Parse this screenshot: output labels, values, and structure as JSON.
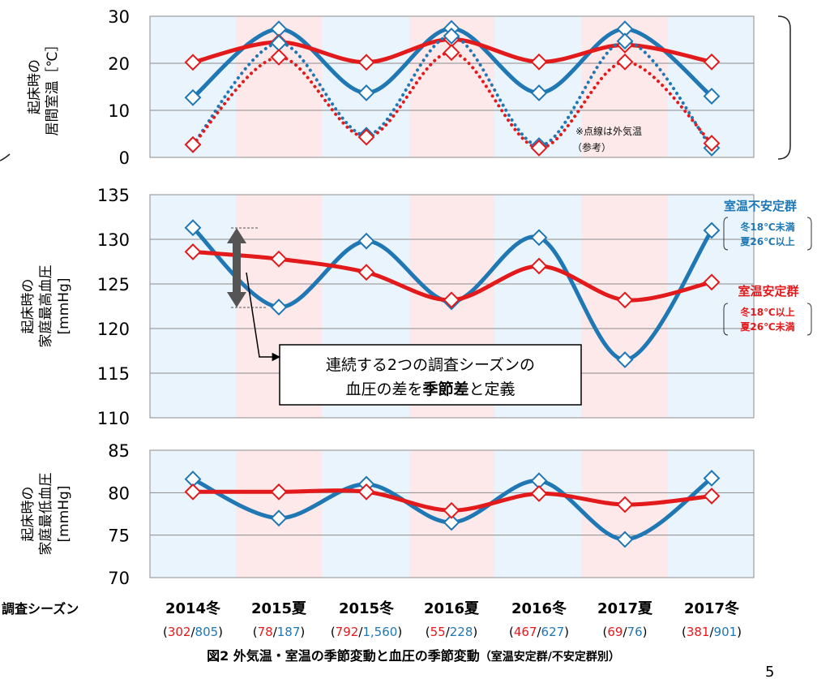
{
  "figure": {
    "caption": "図2 外気温・室温の季節変動と血圧の季節変動",
    "caption_note": "（室温安定群/不安定群別）",
    "page_number": "5",
    "x_row_label": "調査シーズン"
  },
  "colors": {
    "stable": "#e31a1c",
    "unstable": "#1f77b4",
    "winter_bg": "#eaf4fc",
    "summer_bg": "#fde9ea"
  },
  "seasons": [
    {
      "label": "2014冬",
      "type": "winter",
      "n_stable": "302",
      "n_unstable": "805"
    },
    {
      "label": "2015夏",
      "type": "summer",
      "n_stable": "78",
      "n_unstable": "187"
    },
    {
      "label": "2015冬",
      "type": "winter",
      "n_stable": "792",
      "n_unstable": "1,560"
    },
    {
      "label": "2016夏",
      "type": "summer",
      "n_stable": "55",
      "n_unstable": "228"
    },
    {
      "label": "2016冬",
      "type": "winter",
      "n_stable": "467",
      "n_unstable": "627"
    },
    {
      "label": "2017夏",
      "type": "summer",
      "n_stable": "69",
      "n_unstable": "76"
    },
    {
      "label": "2017冬",
      "type": "winter",
      "n_stable": "381",
      "n_unstable": "901"
    }
  ],
  "legend": {
    "unstable": {
      "name": "室温不安定群",
      "line1": "冬18℃未満",
      "line2": "夏26℃以上"
    },
    "stable": {
      "name": "室温安定群",
      "line1": "冬18℃以上",
      "line2": "夏26℃未満"
    }
  },
  "annotations": {
    "outdoor_note_1": "※点線は外気温",
    "outdoor_note_2": "（参考）",
    "callout_line1": "連続する2つの調査シーズンの",
    "callout_line2_a": "血圧の差を",
    "callout_line2_b": "季節差",
    "callout_line2_c": "と定義"
  },
  "chart_data": [
    {
      "type": "line",
      "ylabel_line1": "起床時の",
      "ylabel_line2": "居間室温［℃］",
      "ylim": [
        0,
        30
      ],
      "yticks": [
        0,
        10,
        20,
        30
      ],
      "categories": [
        "2014冬",
        "2015夏",
        "2015冬",
        "2016夏",
        "2016冬",
        "2017夏",
        "2017冬"
      ],
      "series": [
        {
          "key": "unstable",
          "style": "solid",
          "values": [
            12.7,
            27.3,
            13.7,
            27.4,
            13.7,
            27.3,
            13.0
          ]
        },
        {
          "key": "stable",
          "style": "solid",
          "values": [
            20.2,
            24.5,
            20.2,
            25.1,
            20.3,
            23.9,
            20.3
          ]
        },
        {
          "key": "unstable",
          "style": "dotted",
          "values": [
            2.7,
            24.3,
            4.7,
            25.8,
            2.5,
            24.7,
            2.0
          ]
        },
        {
          "key": "stable",
          "style": "dotted",
          "values": [
            2.7,
            21.3,
            4.3,
            22.3,
            2.0,
            20.3,
            3.0
          ]
        }
      ]
    },
    {
      "type": "line",
      "ylabel_line1": "起床時の",
      "ylabel_line2": "家庭最高血圧",
      "ylabel_line3": "[mmHg]",
      "ylim": [
        110,
        135
      ],
      "yticks": [
        110,
        115,
        120,
        125,
        130,
        135
      ],
      "categories": [
        "2014冬",
        "2015夏",
        "2015冬",
        "2016夏",
        "2016冬",
        "2017夏",
        "2017冬"
      ],
      "series": [
        {
          "key": "unstable",
          "values": [
            131.3,
            122.4,
            129.8,
            123.0,
            130.2,
            116.5,
            131.0
          ]
        },
        {
          "key": "stable",
          "values": [
            128.6,
            127.8,
            126.3,
            123.2,
            127.0,
            123.2,
            125.2
          ]
        }
      ]
    },
    {
      "type": "line",
      "ylabel_line1": "起床時の",
      "ylabel_line2": "家庭最低血圧",
      "ylabel_line3": "[mmHg]",
      "ylim": [
        70,
        85
      ],
      "yticks": [
        70,
        75,
        80,
        85
      ],
      "categories": [
        "2014冬",
        "2015夏",
        "2015冬",
        "2016夏",
        "2016冬",
        "2017夏",
        "2017冬"
      ],
      "series": [
        {
          "key": "unstable",
          "values": [
            81.6,
            77.0,
            81.0,
            76.5,
            81.4,
            74.5,
            81.7
          ]
        },
        {
          "key": "stable",
          "values": [
            80.1,
            80.1,
            80.1,
            77.9,
            79.9,
            78.6,
            79.6
          ]
        }
      ]
    }
  ]
}
